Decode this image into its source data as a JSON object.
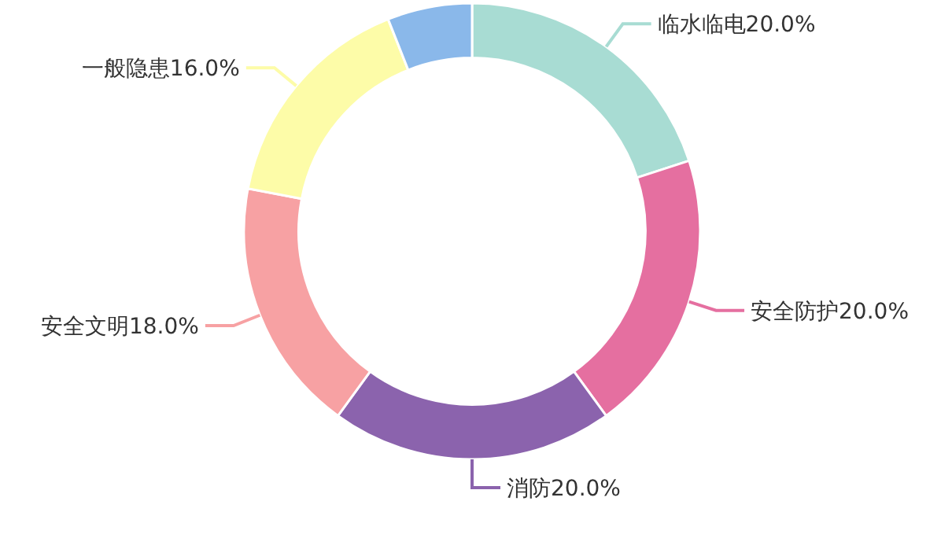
{
  "chart_data": {
    "type": "donut",
    "categories": [
      "临水临电",
      "安全防护",
      "消防",
      "安全文明",
      "一般隐患",
      null
    ],
    "values": [
      20,
      20,
      20,
      18,
      16,
      6
    ],
    "colors": [
      "#a8dcd3",
      "#e56fa0",
      "#8b63ad",
      "#f7a1a3",
      "#fdfca8",
      "#8ab8ea"
    ],
    "value_labels": [
      "20.0%",
      "20.0%",
      "20.0%",
      "18.0%",
      "16.0%",
      null
    ]
  }
}
